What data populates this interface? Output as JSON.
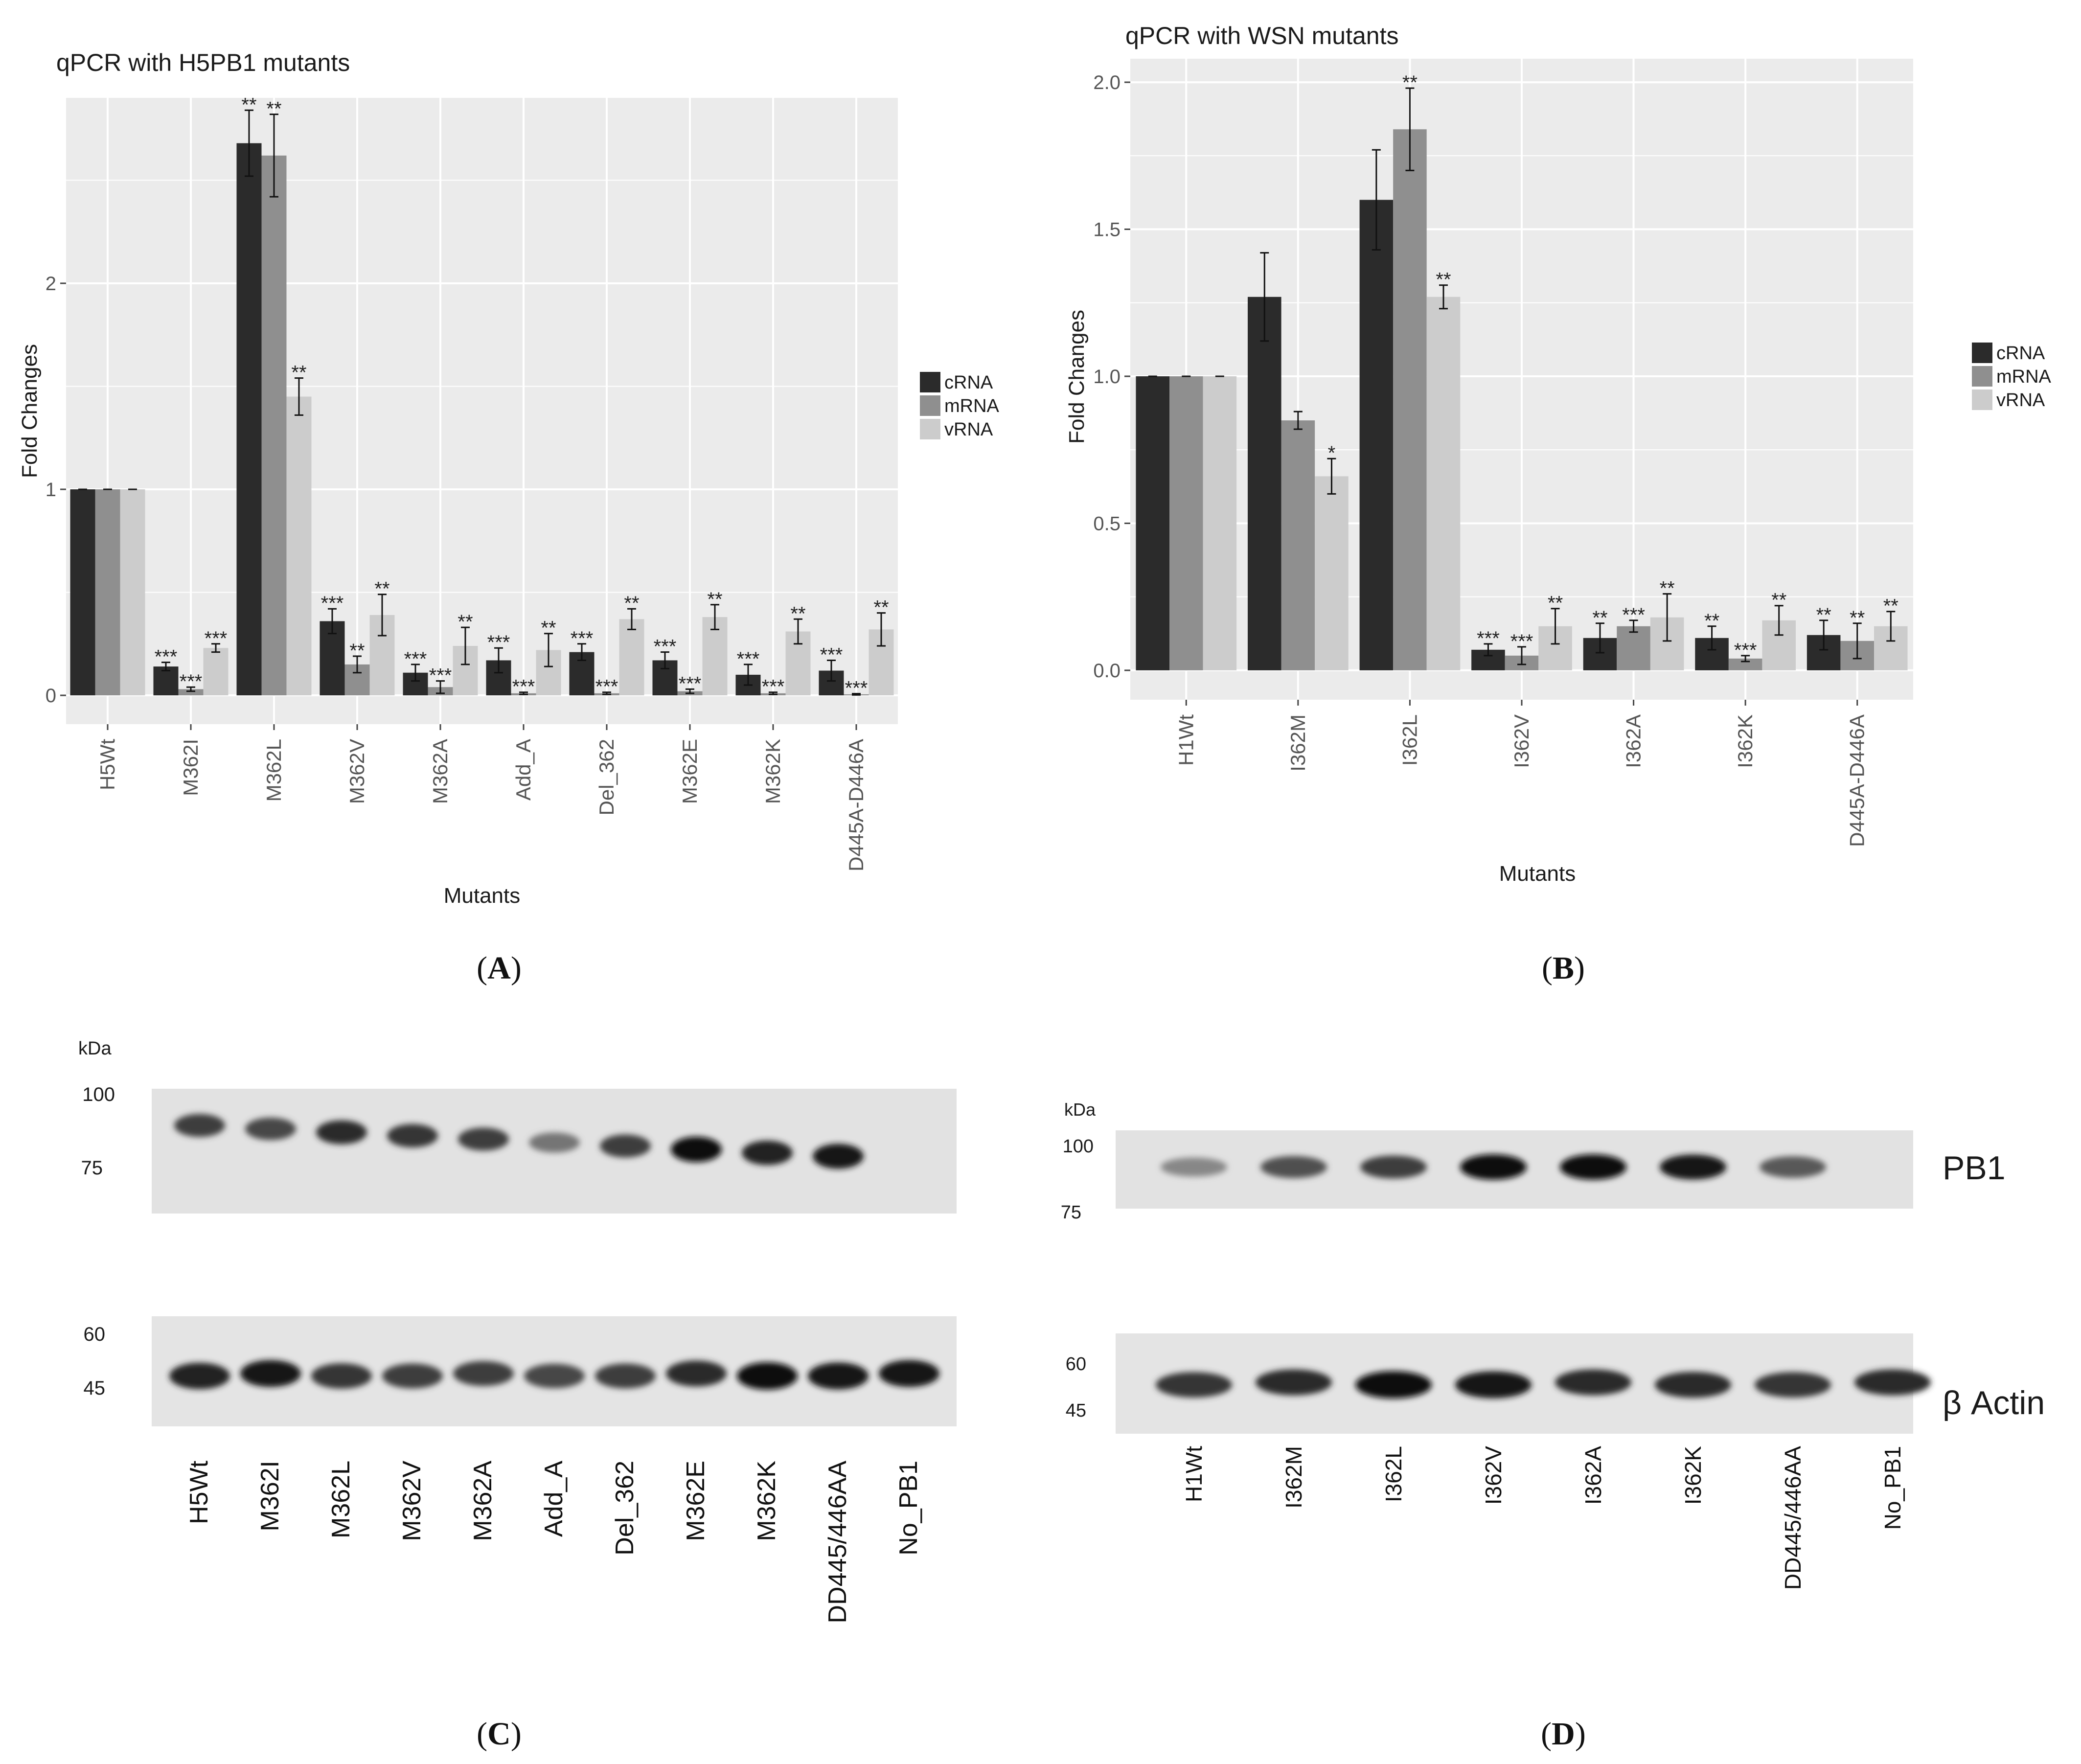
{
  "colors": {
    "crna": "#2b2b2b",
    "mrna": "#8f8f8f",
    "vrna": "#cccccc",
    "panel_bg": "#ebebeb",
    "grid": "#ffffff"
  },
  "chart_data": [
    {
      "id": "A",
      "type": "bar",
      "title": "qPCR with H5PB1 mutants",
      "xlabel": "Mutants",
      "ylabel": "Fold Changes",
      "ylim": [
        -0.14,
        2.9
      ],
      "yticks": [
        0,
        1,
        2
      ],
      "ytick_labels": [
        "0",
        "1",
        "2"
      ],
      "categories": [
        "H5Wt",
        "M362I",
        "M362L",
        "M362V",
        "M362A",
        "Add_A",
        "Del_362",
        "M362E",
        "M362K",
        "D445A-D446A"
      ],
      "legend": [
        "cRNA",
        "mRNA",
        "vRNA"
      ],
      "series": [
        {
          "name": "cRNA",
          "values": [
            1.0,
            0.14,
            2.68,
            0.36,
            0.11,
            0.17,
            0.21,
            0.17,
            0.1,
            0.12
          ],
          "errors": [
            0,
            0.02,
            0.16,
            0.06,
            0.04,
            0.06,
            0.04,
            0.04,
            0.05,
            0.05
          ],
          "stars": [
            "",
            "***",
            "**",
            "***",
            "***",
            "***",
            "***",
            "***",
            "***",
            "***"
          ]
        },
        {
          "name": "mRNA",
          "values": [
            1.0,
            0.03,
            2.62,
            0.15,
            0.04,
            0.01,
            0.01,
            0.02,
            0.01,
            0.005
          ],
          "errors": [
            0,
            0.01,
            0.2,
            0.04,
            0.03,
            0.005,
            0.005,
            0.01,
            0.005,
            0.003
          ],
          "stars": [
            "",
            "***",
            "**",
            "**",
            "***",
            "***",
            "***",
            "***",
            "***",
            "***"
          ]
        },
        {
          "name": "vRNA",
          "values": [
            1.0,
            0.23,
            1.45,
            0.39,
            0.24,
            0.22,
            0.37,
            0.38,
            0.31,
            0.32
          ],
          "errors": [
            0,
            0.02,
            0.09,
            0.1,
            0.09,
            0.08,
            0.05,
            0.06,
            0.06,
            0.08
          ],
          "stars": [
            "",
            "***",
            "**",
            "**",
            "**",
            "**",
            "**",
            "**",
            "**",
            "**"
          ]
        }
      ]
    },
    {
      "id": "B",
      "type": "bar",
      "title": "qPCR with WSN mutants",
      "xlabel": "Mutants",
      "ylabel": "Fold Changes",
      "ylim": [
        -0.1,
        2.08
      ],
      "yticks": [
        0,
        0.5,
        1,
        1.5,
        2
      ],
      "ytick_labels": [
        "0.0",
        "0.5",
        "1.0",
        "1.5",
        "2.0"
      ],
      "categories": [
        "H1Wt",
        "I362M",
        "I362L",
        "I362V",
        "I362A",
        "I362K",
        "D445A-D446A"
      ],
      "legend": [
        "cRNA",
        "mRNA",
        "vRNA"
      ],
      "series": [
        {
          "name": "cRNA",
          "values": [
            1.0,
            1.27,
            1.6,
            0.07,
            0.11,
            0.11,
            0.12
          ],
          "errors": [
            0,
            0.15,
            0.17,
            0.02,
            0.05,
            0.04,
            0.05
          ],
          "stars": [
            "",
            "",
            "",
            "***",
            "**",
            "**",
            "**"
          ]
        },
        {
          "name": "mRNA",
          "values": [
            1.0,
            0.85,
            1.84,
            0.05,
            0.15,
            0.04,
            0.1
          ],
          "errors": [
            0,
            0.03,
            0.14,
            0.03,
            0.02,
            0.01,
            0.06
          ],
          "stars": [
            "",
            "",
            "**",
            "***",
            "***",
            "***",
            "**"
          ]
        },
        {
          "name": "vRNA",
          "values": [
            1.0,
            0.66,
            1.27,
            0.15,
            0.18,
            0.17,
            0.15
          ],
          "errors": [
            0,
            0.06,
            0.04,
            0.06,
            0.08,
            0.05,
            0.05
          ],
          "stars": [
            "",
            "*",
            "**",
            "**",
            "**",
            "**",
            "**"
          ]
        }
      ]
    }
  ],
  "panel_labels": [
    "A",
    "B",
    "C",
    "D"
  ],
  "blot_c": {
    "kda_label": "kDa",
    "top_markers": [
      "100",
      "75"
    ],
    "bottom_markers": [
      "60",
      "45"
    ],
    "lanes": [
      "H5Wt",
      "M362I",
      "M362L",
      "M362V",
      "M362A",
      "Add_A",
      "Del_362",
      "M362E",
      "M362K",
      "DD445/446AA",
      "No_PB1"
    ],
    "pb1_intensity": [
      0.75,
      0.7,
      0.85,
      0.8,
      0.75,
      0.45,
      0.75,
      1.0,
      0.9,
      0.95,
      0.0
    ],
    "actin_intensity": [
      0.9,
      0.95,
      0.8,
      0.75,
      0.75,
      0.7,
      0.75,
      0.85,
      1.0,
      0.95,
      0.95
    ]
  },
  "blot_d": {
    "kda_label": "kDa",
    "top_markers": [
      "100",
      "75"
    ],
    "bottom_markers": [
      "60",
      "45"
    ],
    "lanes": [
      "H1Wt",
      "I362M",
      "I362L",
      "I362V",
      "I362A",
      "I362K",
      "DD445/446AA",
      "No_PB1"
    ],
    "pb1_intensity": [
      0.35,
      0.65,
      0.75,
      1.0,
      1.0,
      0.95,
      0.6,
      0.0
    ],
    "actin_intensity": [
      0.8,
      0.85,
      1.0,
      0.95,
      0.85,
      0.85,
      0.8,
      0.85
    ],
    "pb1_label": "PB1",
    "actin_label": "β Actin"
  }
}
